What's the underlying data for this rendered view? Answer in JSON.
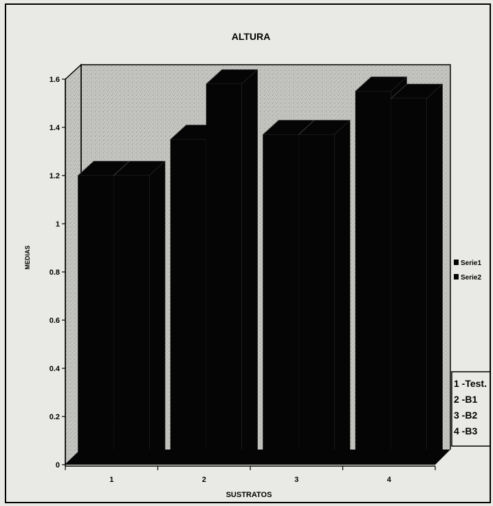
{
  "chart_data": {
    "type": "bar",
    "title": "ALTURA",
    "xlabel": "SUSTRATOS",
    "ylabel": "MEDIAS",
    "categories": [
      "1",
      "2",
      "3",
      "4"
    ],
    "series": [
      {
        "name": "Serie1",
        "values": [
          1.2,
          1.35,
          1.37,
          1.55
        ]
      },
      {
        "name": "Serie2",
        "values": [
          1.2,
          1.58,
          1.37,
          1.52
        ]
      }
    ],
    "ylim": [
      0,
      1.6
    ],
    "yticks": [
      "0",
      "0.2",
      "0.4",
      "0.6",
      "0.8",
      "1",
      "1.2",
      "1.4",
      "1.6"
    ],
    "grid": false,
    "legend_position": "right",
    "substrate_key": [
      "1 -Test.",
      "2 -B1",
      "3 -B2",
      "4 -B3"
    ],
    "colors": {
      "background": "#e9e9e5",
      "plot_area": "#c4c4c0",
      "bars": "#050505",
      "frame": "#000000"
    }
  }
}
